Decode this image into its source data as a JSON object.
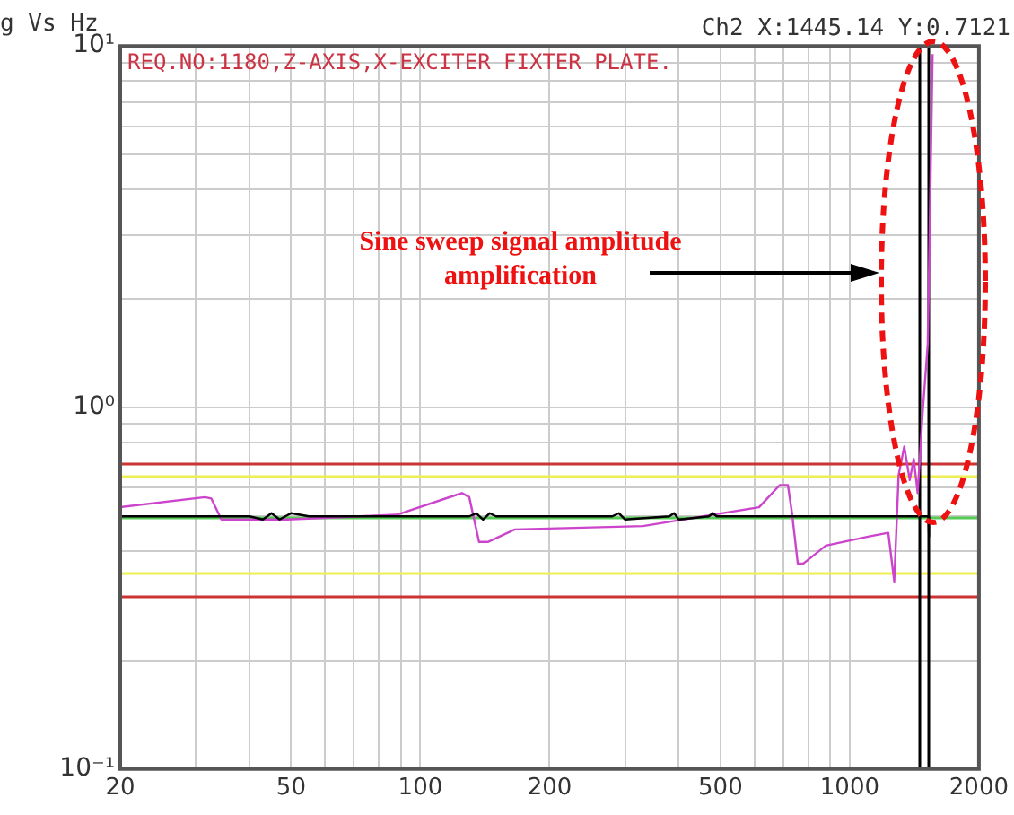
{
  "chart_data": {
    "type": "line",
    "title": "g Vs Hz",
    "log": "xy",
    "grid": true,
    "legend": false,
    "marker": "none",
    "line_style": "solid",
    "xlim": [
      20,
      2000
    ],
    "xticks": [
      20,
      {
        "value": 30,
        "label": null
      },
      {
        "value": 40,
        "label": null
      },
      50,
      {
        "value": 60,
        "label": null
      },
      {
        "value": 70,
        "label": null
      },
      {
        "value": 80,
        "label": null
      },
      {
        "value": 90,
        "label": null
      },
      100,
      200,
      {
        "value": 300,
        "label": null
      },
      {
        "value": 400,
        "label": null
      },
      500,
      {
        "value": 600,
        "label": null
      },
      {
        "value": 700,
        "label": null
      },
      {
        "value": 800,
        "label": null
      },
      {
        "value": 900,
        "label": null
      },
      1000,
      2000
    ],
    "ylim": [
      0.1,
      10
    ],
    "yticks": [
      {
        "value": 0.1,
        "label": "10⁻¹"
      },
      {
        "value": 0.2,
        "label": null
      },
      {
        "value": 0.4,
        "label": null
      },
      {
        "value": 0.5,
        "label": null
      },
      {
        "value": 0.6,
        "label": null
      },
      {
        "value": 0.8,
        "label": null
      },
      {
        "value": 0.9,
        "label": null
      },
      {
        "value": 1,
        "label": "10⁰"
      },
      {
        "value": 2,
        "label": null
      },
      {
        "value": 3,
        "label": null
      },
      {
        "value": 4,
        "label": null
      },
      {
        "value": 5,
        "label": null
      },
      {
        "value": 6,
        "label": null
      },
      {
        "value": 7,
        "label": null
      },
      {
        "value": 8,
        "label": null
      },
      {
        "value": 9,
        "label": null
      },
      {
        "value": 10,
        "label": "10¹"
      }
    ],
    "series": [
      {
        "color": "#000000",
        "x": [
          20,
          40,
          43,
          45,
          47,
          50,
          55,
          60,
          130,
          135,
          140,
          145,
          150,
          280,
          290,
          300,
          380,
          390,
          400,
          470,
          480,
          490,
          700,
          800,
          1000,
          1200,
          1300,
          1440,
          1500,
          1525,
          1530
        ],
        "values": [
          0.5,
          0.5,
          0.49,
          0.51,
          0.49,
          0.51,
          0.5,
          0.5,
          0.5,
          0.51,
          0.49,
          0.51,
          0.5,
          0.5,
          0.51,
          0.49,
          0.5,
          0.51,
          0.49,
          0.5,
          0.51,
          0.5,
          0.5,
          0.5,
          0.5,
          0.5,
          0.5,
          0.5,
          0.5,
          0.5,
          0.44
        ]
      },
      {
        "color": "#cc44cc",
        "x": [
          20,
          31.5,
          32.6,
          34.4,
          49,
          88,
          125,
          130,
          137,
          144,
          166,
          330,
          615,
          687,
          718,
          734,
          757,
          780,
          880,
          1110,
          1230,
          1270,
          1300,
          1340,
          1380,
          1410,
          1440,
          1480,
          1520,
          1560
        ],
        "values": [
          0.53,
          0.565,
          0.56,
          0.49,
          0.49,
          0.505,
          0.58,
          0.565,
          0.425,
          0.425,
          0.46,
          0.47,
          0.53,
          0.61,
          0.61,
          0.51,
          0.37,
          0.37,
          0.415,
          0.44,
          0.45,
          0.33,
          0.65,
          0.78,
          0.63,
          0.72,
          0.58,
          0.98,
          1.5,
          9.5
        ]
      }
    ],
    "ref_lines": [
      {
        "axis": "y",
        "value": 0.7,
        "color": "#cc3333"
      },
      {
        "axis": "y",
        "value": 0.65,
        "color": "#eeee55"
      },
      {
        "axis": "y",
        "value": 0.5,
        "color": "#55cc55"
      },
      {
        "axis": "y",
        "value": 0.35,
        "color": "#eeee55"
      },
      {
        "axis": "y",
        "value": 0.3,
        "color": "#cc3333"
      },
      {
        "axis": "x",
        "value": 1445.14,
        "color": "#000000"
      },
      {
        "axis": "x",
        "value": 1525,
        "color": "#000000"
      }
    ],
    "annotations": [
      "Ch2 X:1445.14 Y:0.7121",
      "REQ.NO:1180,Z-AXIS,X-EXCITER FIXTER PLATE.",
      "Sine sweep signal amplitude amplification"
    ]
  }
}
